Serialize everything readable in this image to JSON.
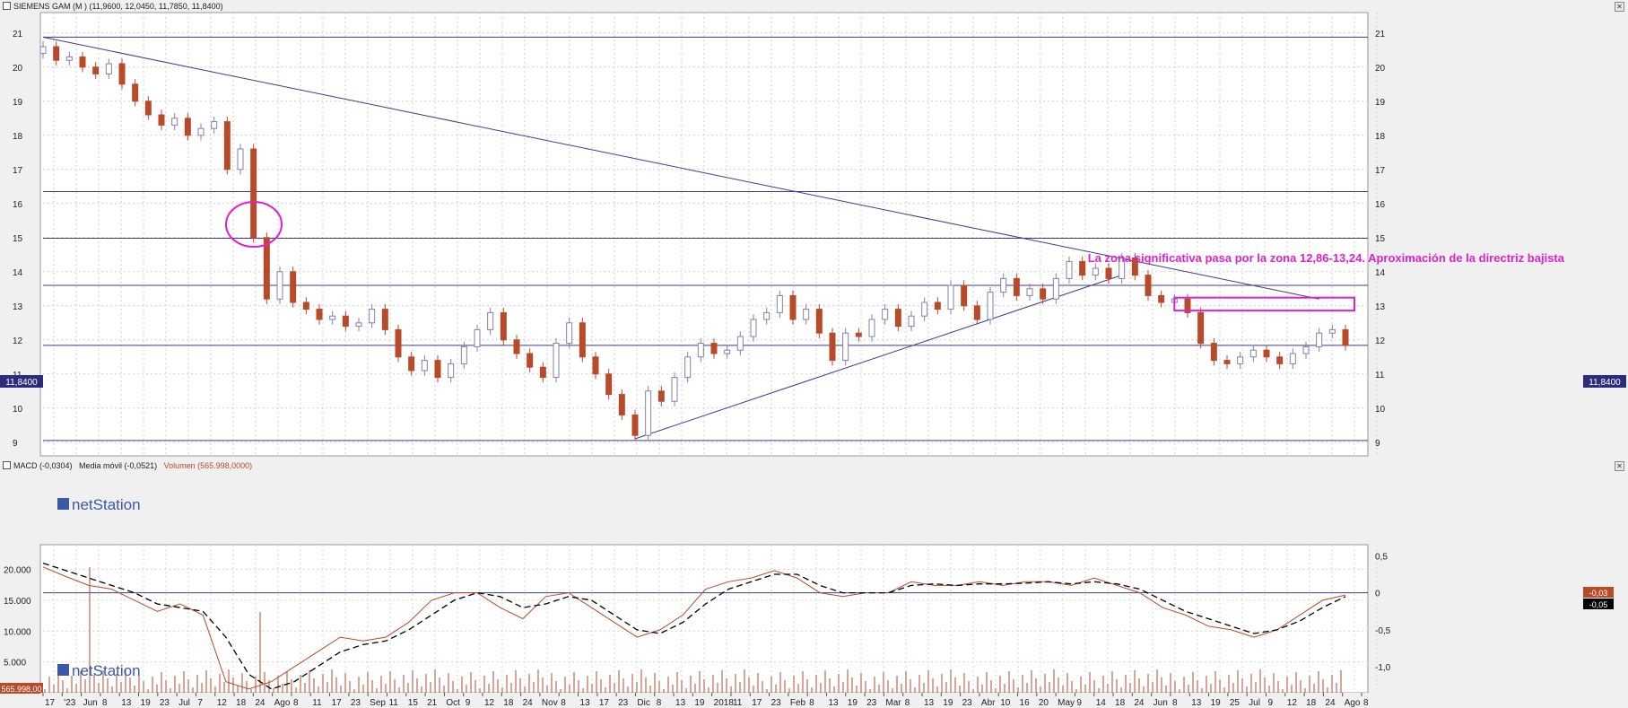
{
  "title_bar": {
    "text": "SIEMENS GAM (M ) (11,9600, 12,0450, 11,7850, 11,8400)"
  },
  "price_panel": {
    "price_axis_ticks": [
      "9",
      "10",
      "11",
      "12",
      "13",
      "14",
      "15",
      "16",
      "17",
      "18",
      "19",
      "20",
      "21"
    ],
    "last_price_label": "11,8400",
    "watermark": "netStation",
    "annotation": "La zona significativa pasa por la zona 12,86-13,24. Aproximación de la directriz bajista",
    "horizontal_levels": [
      20.88,
      16.35,
      14.98,
      13.6,
      11.84,
      9.05
    ],
    "zone_box": {
      "from": "Jun",
      "to": "Ago",
      "low": 12.86,
      "high": 13.24
    },
    "colors": {
      "up_candle": "#8080b0",
      "down_candle": "#b84a2a",
      "levels": "#3c3c8c",
      "annotation": "#e020d0"
    }
  },
  "macd_panel": {
    "legend_macd": "MACD (-0,0304)",
    "legend_ma": "Media móvil (-0,0521)",
    "legend_volume": "Volumen (565.998,0000)",
    "volume_axis_ticks": [
      "5.000",
      "10.000",
      "15.000",
      "20.000"
    ],
    "volume_current_label": "565.998,00",
    "macd_axis_ticks": [
      "0,5",
      "0",
      "-0,5",
      "-1,0"
    ],
    "macd_value_label": "-0,03",
    "ma_value_label": "-0,05",
    "watermark": "netStation"
  },
  "x_axis_labels": [
    "17",
    "'23",
    "Jun",
    "8",
    "13",
    "19",
    "23",
    "Jul",
    "7",
    "12",
    "18",
    "24",
    "Ago",
    "8",
    "11",
    "17",
    "23",
    "Sep",
    "11",
    "15",
    "21",
    "Oct",
    "9",
    "12",
    "18",
    "24",
    "Nov",
    "8",
    "13",
    "17",
    "23",
    "Dic",
    "8",
    "13",
    "19",
    "2018",
    "11",
    "17",
    "23",
    "Feb",
    "8",
    "13",
    "19",
    "23",
    "Mar",
    "8",
    "13",
    "19",
    "23",
    "Abr",
    "10",
    "16",
    "20",
    "May",
    "9",
    "14",
    "18",
    "24",
    "Jun",
    "8",
    "13",
    "19",
    "25",
    "Jul",
    "9",
    "12",
    "18",
    "24",
    "Ago",
    "8"
  ],
  "chart_data": [
    {
      "type": "candlestick",
      "title": "SIEMENS GAM (M ) (11,9600, 12,0450, 11,7850, 11,8400)",
      "y_range": [
        8.6,
        21.6
      ],
      "series_close": [
        20.6,
        20.2,
        20.3,
        20.0,
        19.8,
        20.1,
        19.5,
        19.0,
        18.6,
        18.3,
        18.5,
        18.0,
        18.2,
        18.4,
        17.0,
        17.6,
        15.0,
        13.2,
        14.0,
        13.1,
        12.9,
        12.6,
        12.7,
        12.4,
        12.5,
        12.9,
        12.3,
        11.5,
        11.1,
        11.4,
        10.9,
        11.3,
        11.8,
        12.3,
        12.8,
        12.0,
        11.6,
        11.2,
        10.9,
        11.9,
        12.5,
        11.5,
        11.0,
        10.4,
        9.8,
        9.2,
        10.5,
        10.2,
        10.9,
        11.5,
        11.9,
        11.6,
        11.7,
        12.1,
        12.6,
        12.8,
        13.3,
        12.6,
        12.9,
        12.2,
        11.4,
        12.2,
        12.1,
        12.6,
        12.9,
        12.4,
        12.7,
        13.1,
        12.9,
        13.6,
        13.0,
        12.6,
        13.4,
        13.8,
        13.3,
        13.5,
        13.2,
        13.8,
        14.3,
        13.9,
        14.1,
        13.8,
        14.4,
        13.9,
        13.3,
        13.1,
        13.2,
        12.8,
        11.9,
        11.4,
        11.3,
        11.5,
        11.7,
        11.5,
        11.3,
        11.6,
        11.8,
        12.2,
        12.3,
        11.84
      ],
      "start_label": "May 17 '23",
      "end_label": "Ago 8",
      "horizontal_levels": [
        20.88,
        16.35,
        14.98,
        13.6,
        11.84,
        9.05
      ],
      "trendlines": [
        {
          "name": "directriz bajista",
          "from": [
            0,
            20.88
          ],
          "to": [
            97,
            13.2
          ]
        },
        {
          "name": "directriz alcista",
          "from": [
            45,
            9.1
          ],
          "to": [
            82,
            13.9
          ]
        }
      ]
    },
    {
      "type": "line",
      "title": "MACD (-0,0304)",
      "y_range": [
        -1.35,
        0.65
      ],
      "series": [
        {
          "name": "MACD",
          "values": [
            0.35,
            0.22,
            0.1,
            0.05,
            -0.1,
            -0.25,
            -0.15,
            -0.3,
            -1.2,
            -1.3,
            -1.2,
            -1.0,
            -0.8,
            -0.6,
            -0.65,
            -0.6,
            -0.4,
            -0.1,
            0.0,
            0.0,
            -0.2,
            -0.35,
            -0.05,
            0.0,
            -0.2,
            -0.4,
            -0.6,
            -0.5,
            -0.3,
            0.05,
            0.15,
            0.2,
            0.3,
            0.2,
            0.0,
            -0.05,
            0.0,
            0.0,
            0.15,
            0.1,
            0.1,
            0.15,
            0.1,
            0.15,
            0.15,
            0.1,
            0.2,
            0.1,
            0.0,
            -0.2,
            -0.3,
            -0.45,
            -0.5,
            -0.6,
            -0.5,
            -0.3,
            -0.1,
            -0.03
          ]
        },
        {
          "name": "Media móvil",
          "values": [
            0.4,
            0.3,
            0.2,
            0.1,
            0.0,
            -0.15,
            -0.2,
            -0.25,
            -0.6,
            -1.1,
            -1.3,
            -1.2,
            -1.0,
            -0.8,
            -0.7,
            -0.65,
            -0.5,
            -0.3,
            -0.1,
            0.0,
            -0.05,
            -0.2,
            -0.15,
            -0.05,
            -0.1,
            -0.3,
            -0.5,
            -0.55,
            -0.4,
            -0.15,
            0.05,
            0.15,
            0.25,
            0.25,
            0.1,
            0.0,
            0.0,
            0.0,
            0.1,
            0.12,
            0.1,
            0.12,
            0.12,
            0.13,
            0.15,
            0.12,
            0.15,
            0.12,
            0.05,
            -0.1,
            -0.25,
            -0.35,
            -0.45,
            -0.55,
            -0.5,
            -0.38,
            -0.2,
            -0.05
          ]
        }
      ]
    }
  ]
}
